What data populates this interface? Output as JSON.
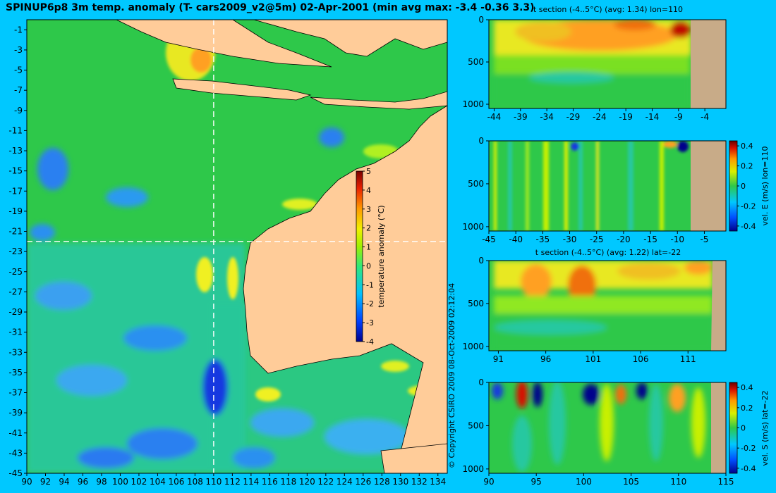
{
  "title": "SPINUP6p8 3m temp. anomaly (T- cars2009_v2@5m) 02-Apr-2001 (min avg max: -3.4 -0.36 3.3)",
  "copyright": "© Copyright CSIRO 2009  08-Oct-2009 02:12:04",
  "colors": {
    "background": "#00c8ff",
    "land": "#ffcc99",
    "ocean_base": "#2ec84a",
    "section_land": "#c8ab88"
  },
  "chart_data": [
    {
      "type": "heatmap",
      "id": "map",
      "title": "SPINUP6p8 3m temp. anomaly (T- cars2009_v2@5m) 02-Apr-2001 (min avg max: -3.4 -0.36 3.3)",
      "x_ticks": [
        90,
        92,
        94,
        96,
        98,
        100,
        102,
        104,
        106,
        108,
        110,
        112,
        114,
        116,
        118,
        120,
        122,
        124,
        126,
        128,
        130,
        132,
        134
      ],
      "y_ticks": [
        -1,
        -3,
        -5,
        -7,
        -9,
        -11,
        -13,
        -15,
        -17,
        -19,
        -21,
        -23,
        -25,
        -27,
        -29,
        -31,
        -33,
        -35,
        -37,
        -39,
        -41,
        -43,
        -45
      ],
      "xlim": [
        90,
        135
      ],
      "ylim": [
        -45,
        0
      ],
      "section_lon": 110,
      "section_lat": -22,
      "colorbar": {
        "label": "temperature anomaly (°C)",
        "ticks": [
          5,
          4,
          3,
          2,
          1,
          0,
          -1,
          -2,
          -3,
          -4
        ],
        "range": [
          -4,
          5
        ]
      }
    },
    {
      "type": "heatmap",
      "id": "t-section-lon",
      "title": "t section (-4..5°C) (avg: 1.34) lon=110",
      "x_ticks": [
        -44,
        -39,
        -34,
        -29,
        -24,
        -19,
        -14,
        -9,
        -4
      ],
      "y_ticks": [
        0,
        500,
        1000
      ],
      "xlim": [
        -45,
        0
      ],
      "ylim": [
        1050,
        0
      ]
    },
    {
      "type": "heatmap",
      "id": "vel-e-section",
      "x_ticks": [
        -45,
        -40,
        -35,
        -30,
        -25,
        -20,
        -15,
        -10,
        -5
      ],
      "y_ticks": [
        0,
        500,
        1000
      ],
      "xlim": [
        -45,
        -1
      ],
      "ylim": [
        1050,
        0
      ],
      "colorbar": {
        "label": "vel. E (m/s) lon=110",
        "ticks": [
          "0.4",
          "0.2",
          "0",
          "-0.2",
          "-0.4"
        ],
        "range": [
          -0.45,
          0.45
        ]
      }
    },
    {
      "type": "heatmap",
      "id": "t-section-lat",
      "title": "t section (-4..5°C) (avg: 1.22) lat=-22",
      "x_ticks": [
        91,
        96,
        101,
        106,
        111
      ],
      "y_ticks": [
        0,
        500,
        1000
      ],
      "xlim": [
        90,
        115
      ],
      "ylim": [
        1050,
        0
      ]
    },
    {
      "type": "heatmap",
      "id": "vel-s-section",
      "x_ticks": [
        90,
        95,
        100,
        105,
        110,
        115
      ],
      "y_ticks": [
        0,
        500,
        1000
      ],
      "xlim": [
        90,
        115
      ],
      "ylim": [
        1050,
        0
      ],
      "colorbar": {
        "label": "vel. S (m/s) lat=-22",
        "ticks": [
          "0.4",
          "0.2",
          "0",
          "-0.2",
          "-0.4"
        ],
        "range": [
          -0.45,
          0.45
        ]
      }
    }
  ]
}
